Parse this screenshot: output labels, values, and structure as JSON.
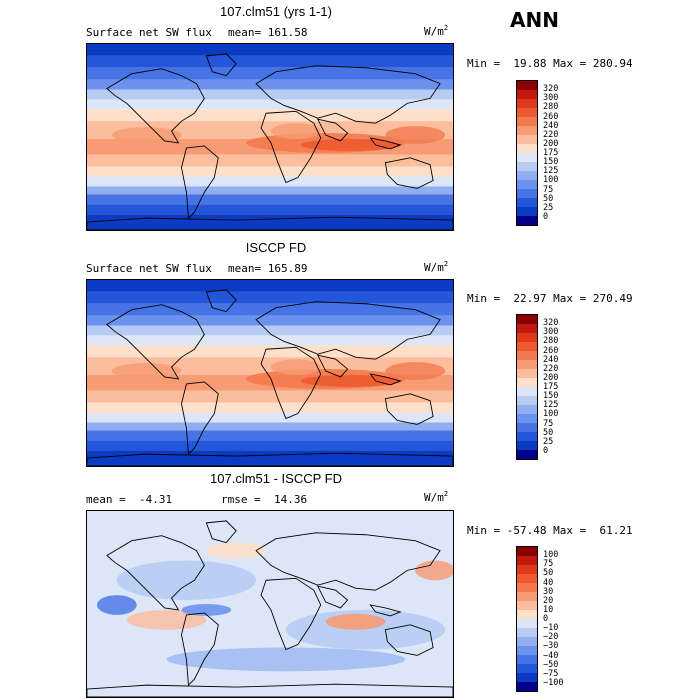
{
  "season": "ANN",
  "panels": [
    {
      "title": "107.clm51 (yrs 1-1)",
      "left_label": "Surface net SW flux",
      "stat_label": "mean= 161.58",
      "units": "W/m",
      "units_exp": "2",
      "minmax": "Min =  19.88 Max = 280.94",
      "cbar_labels": [
        "320",
        "300",
        "280",
        "260",
        "240",
        "220",
        "200",
        "175",
        "150",
        "125",
        "100",
        "75",
        "50",
        "25",
        "0"
      ],
      "cbar_colors": [
        "#8b0000",
        "#c2180f",
        "#e0381b",
        "#ee5a2f",
        "#f37a4f",
        "#f79b74",
        "#fbbd9c",
        "#fde0c9",
        "#dce6f7",
        "#b7cbf3",
        "#91aff0",
        "#6b92ec",
        "#4674e6",
        "#2456d9",
        "#0b3bc4",
        "#00008b"
      ],
      "map_style": "abs"
    },
    {
      "title": "ISCCP FD",
      "left_label": "Surface net SW flux",
      "stat_label": "mean= 165.89",
      "units": "W/m",
      "units_exp": "2",
      "minmax": "Min =  22.97 Max = 270.49",
      "cbar_labels": [
        "320",
        "300",
        "280",
        "260",
        "240",
        "220",
        "200",
        "175",
        "150",
        "125",
        "100",
        "75",
        "50",
        "25",
        "0"
      ],
      "cbar_colors": [
        "#8b0000",
        "#c2180f",
        "#e0381b",
        "#ee5a2f",
        "#f37a4f",
        "#f79b74",
        "#fbbd9c",
        "#fde0c9",
        "#dce6f7",
        "#b7cbf3",
        "#91aff0",
        "#6b92ec",
        "#4674e6",
        "#2456d9",
        "#0b3bc4",
        "#00008b"
      ],
      "map_style": "abs"
    },
    {
      "title": "107.clm51 - ISCCP FD",
      "left_label": "mean =  -4.31",
      "stat_label": "rmse =  14.36",
      "units": "W/m",
      "units_exp": "2",
      "minmax": "Min = -57.48 Max =  61.21",
      "cbar_labels": [
        "100",
        "75",
        "50",
        "40",
        "30",
        "20",
        "10",
        "0",
        "−10",
        "−20",
        "−30",
        "−40",
        "−50",
        "−75",
        "−100"
      ],
      "cbar_colors": [
        "#8b0000",
        "#c2180f",
        "#e0381b",
        "#ee5a2f",
        "#f37a4f",
        "#f79b74",
        "#fbbd9c",
        "#fde0c9",
        "#dce6f7",
        "#b7cbf3",
        "#91aff0",
        "#6b92ec",
        "#4674e6",
        "#2456d9",
        "#0b3bc4",
        "#00008b"
      ],
      "map_style": "diff"
    }
  ]
}
